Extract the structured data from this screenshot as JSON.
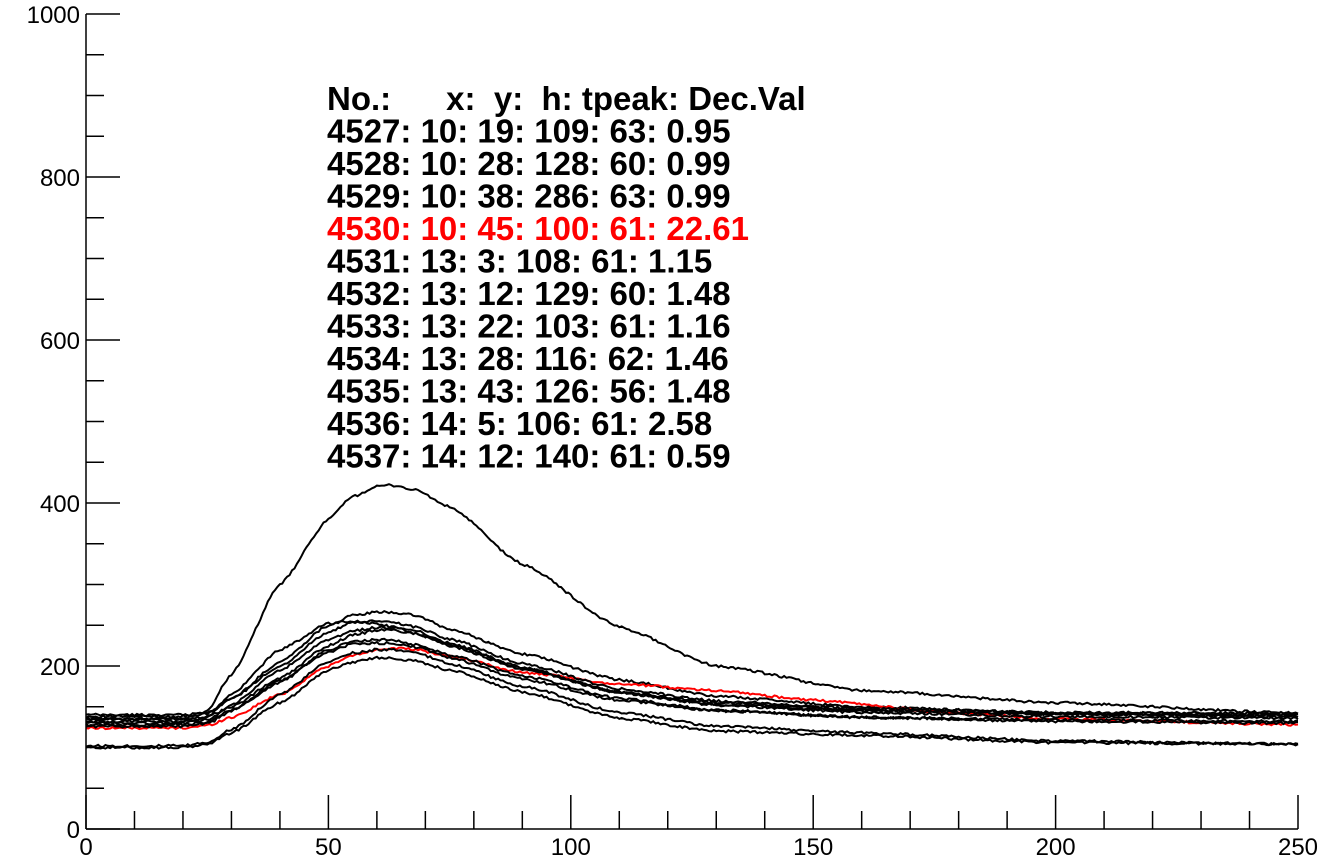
{
  "chart_data": {
    "type": "line",
    "title": "",
    "xlabel": "",
    "ylabel": "",
    "xlim": [
      0,
      250
    ],
    "ylim": [
      0,
      1000
    ],
    "x_ticks": [
      "0",
      "50",
      "100",
      "150",
      "200",
      "250"
    ],
    "y_ticks": [
      "0",
      "200",
      "400",
      "600",
      "800",
      "1000"
    ],
    "grid": false,
    "legend": {
      "placement": "top-center",
      "header": "No.:      x:  y:  h: tpeak: Dec.Val",
      "rows": [
        {
          "text": "4527: 10: 19: 109: 63: 0.95",
          "color": "#000000"
        },
        {
          "text": "4528: 10: 28: 128: 60: 0.99",
          "color": "#000000"
        },
        {
          "text": "4529: 10: 38: 286: 63: 0.99",
          "color": "#000000"
        },
        {
          "text": "4530: 10: 45: 100: 61: 22.61",
          "color": "#ff0000"
        },
        {
          "text": "4531: 13: 3: 108: 61: 1.15",
          "color": "#000000"
        },
        {
          "text": "4532: 13: 12: 129: 60: 1.48",
          "color": "#000000"
        },
        {
          "text": "4533: 13: 22: 103: 61: 1.16",
          "color": "#000000"
        },
        {
          "text": "4534: 13: 28: 116: 62: 1.46",
          "color": "#000000"
        },
        {
          "text": "4535: 13: 43: 126: 56: 1.48",
          "color": "#000000"
        },
        {
          "text": "4536: 14: 5: 106: 61: 2.58",
          "color": "#000000"
        },
        {
          "text": "4537: 14: 12: 140: 61: 0.59",
          "color": "#000000"
        }
      ]
    },
    "series": [
      {
        "color": "#000000",
        "x": [
          0,
          20,
          25,
          30,
          40,
          50,
          55,
          60,
          63,
          68,
          75,
          90,
          110,
          130,
          160,
          200,
          250
        ],
        "y": [
          135,
          135,
          138,
          150,
          185,
          225,
          238,
          244,
          244,
          240,
          226,
          198,
          168,
          153,
          145,
          141,
          138
        ]
      },
      {
        "color": "#000000",
        "x": [
          0,
          20,
          25,
          30,
          40,
          50,
          55,
          60,
          63,
          68,
          75,
          90,
          110,
          130,
          160,
          200,
          250
        ],
        "y": [
          138,
          138,
          141,
          160,
          205,
          250,
          262,
          266,
          266,
          262,
          245,
          215,
          183,
          163,
          150,
          142,
          140
        ]
      },
      {
        "color": "#000000",
        "x": [
          0,
          20,
          25,
          30,
          40,
          50,
          55,
          60,
          63,
          68,
          75,
          90,
          110,
          130,
          160,
          200,
          250
        ],
        "y": [
          135,
          135,
          145,
          190,
          300,
          380,
          408,
          420,
          422,
          416,
          395,
          325,
          248,
          200,
          170,
          155,
          142
        ]
      },
      {
        "color": "#ff0000",
        "x": [
          0,
          20,
          25,
          30,
          40,
          50,
          55,
          60,
          63,
          68,
          75,
          90,
          110,
          130,
          150,
          180,
          200,
          250
        ],
        "y": [
          124,
          124,
          127,
          137,
          165,
          200,
          213,
          220,
          222,
          220,
          212,
          192,
          178,
          170,
          158,
          142,
          135,
          128
        ]
      },
      {
        "color": "#000000",
        "x": [
          0,
          20,
          25,
          30,
          40,
          50,
          55,
          60,
          63,
          68,
          75,
          90,
          110,
          130,
          160,
          200,
          250
        ],
        "y": [
          100,
          100,
          104,
          118,
          155,
          195,
          205,
          210,
          210,
          206,
          195,
          168,
          136,
          120,
          115,
          106,
          104
        ]
      },
      {
        "color": "#000000",
        "x": [
          0,
          20,
          25,
          30,
          40,
          50,
          55,
          60,
          63,
          68,
          75,
          90,
          110,
          130,
          160,
          200,
          250
        ],
        "y": [
          140,
          140,
          143,
          160,
          200,
          242,
          253,
          255,
          254,
          248,
          233,
          203,
          172,
          157,
          148,
          143,
          142
        ]
      },
      {
        "color": "#000000",
        "x": [
          0,
          20,
          25,
          30,
          40,
          50,
          55,
          60,
          63,
          68,
          75,
          90,
          110,
          130,
          160,
          200,
          250
        ],
        "y": [
          102,
          102,
          106,
          122,
          165,
          205,
          216,
          220,
          220,
          216,
          203,
          175,
          143,
          126,
          118,
          108,
          104
        ]
      },
      {
        "color": "#000000",
        "x": [
          0,
          20,
          25,
          30,
          40,
          50,
          55,
          60,
          63,
          68,
          75,
          90,
          110,
          130,
          160,
          200,
          250
        ],
        "y": [
          126,
          126,
          129,
          145,
          180,
          220,
          230,
          232,
          232,
          226,
          214,
          188,
          160,
          146,
          137,
          134,
          132
        ]
      },
      {
        "color": "#000000",
        "x": [
          0,
          20,
          25,
          30,
          40,
          50,
          55,
          60,
          63,
          68,
          75,
          90,
          110,
          130,
          160,
          200,
          250
        ],
        "y": [
          132,
          132,
          137,
          165,
          220,
          252,
          255,
          252,
          248,
          240,
          225,
          196,
          168,
          155,
          146,
          141,
          139
        ]
      },
      {
        "color": "#000000",
        "x": [
          0,
          20,
          25,
          30,
          40,
          50,
          55,
          60,
          63,
          68,
          75,
          90,
          110,
          130,
          160,
          200,
          250
        ],
        "y": [
          128,
          128,
          131,
          146,
          182,
          217,
          227,
          228,
          228,
          223,
          210,
          184,
          158,
          145,
          137,
          132,
          130
        ]
      },
      {
        "color": "#000000",
        "x": [
          0,
          20,
          25,
          30,
          40,
          50,
          55,
          60,
          63,
          68,
          75,
          90,
          110,
          130,
          160,
          200,
          250
        ],
        "y": [
          130,
          130,
          134,
          152,
          195,
          232,
          243,
          247,
          247,
          243,
          228,
          198,
          167,
          152,
          143,
          138,
          136
        ]
      }
    ]
  }
}
